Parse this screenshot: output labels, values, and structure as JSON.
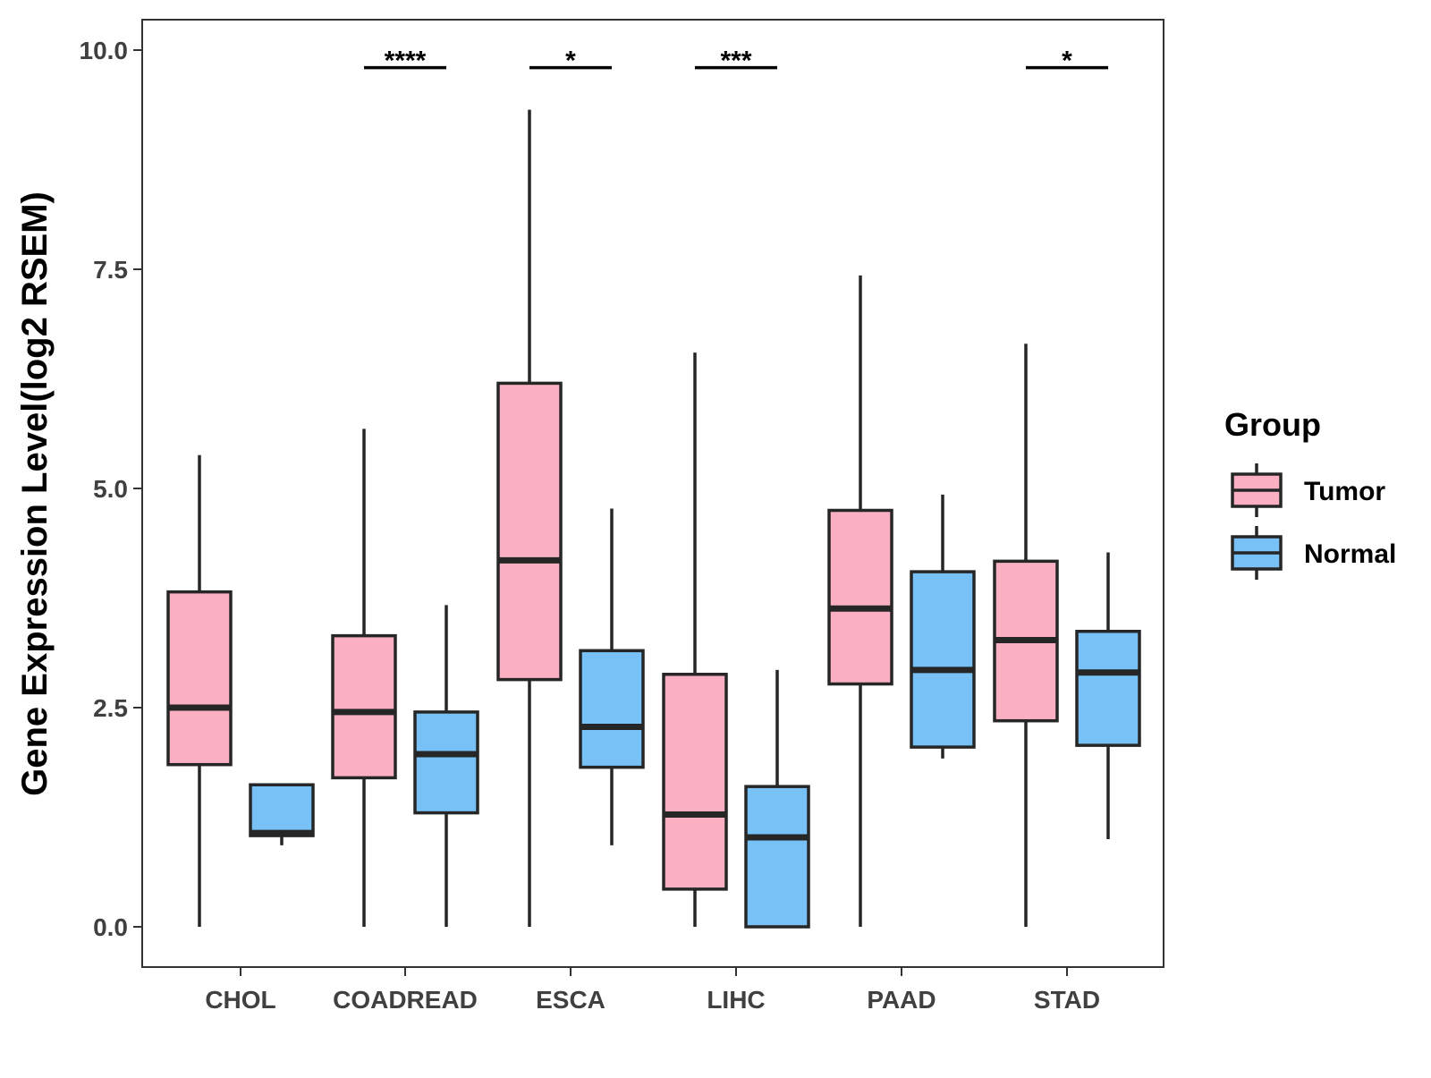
{
  "chart_data": {
    "type": "boxplot",
    "title": "",
    "xlabel": "",
    "ylabel": "Gene Expression Level(log2 RSEM)",
    "ylim": [
      -0.5,
      10.35
    ],
    "yticks": [
      0.0,
      2.5,
      5.0,
      7.5,
      10.0
    ],
    "ytick_labels": [
      "0.0",
      "2.5",
      "5.0",
      "7.5",
      "10.0"
    ],
    "grid": false,
    "categories": [
      "CHOL",
      "COADREAD",
      "ESCA",
      "LIHC",
      "PAAD",
      "STAD"
    ],
    "series": [
      {
        "name": "Tumor",
        "color": "#FAB0C2",
        "stats": [
          {
            "min": 0.0,
            "q1": 1.85,
            "median": 2.5,
            "q3": 3.82,
            "max": 5.38
          },
          {
            "min": 0.0,
            "q1": 1.7,
            "median": 2.45,
            "q3": 3.32,
            "max": 5.68
          },
          {
            "min": 0.0,
            "q1": 2.82,
            "median": 4.18,
            "q3": 6.2,
            "max": 9.32
          },
          {
            "min": 0.0,
            "q1": 0.43,
            "median": 1.28,
            "q3": 2.88,
            "max": 6.55
          },
          {
            "min": 0.0,
            "q1": 2.77,
            "median": 3.63,
            "q3": 4.75,
            "max": 7.43
          },
          {
            "min": 0.0,
            "q1": 2.35,
            "median": 3.27,
            "q3": 4.17,
            "max": 6.65
          }
        ]
      },
      {
        "name": "Normal",
        "color": "#77C1F7",
        "stats": [
          {
            "min": 0.93,
            "q1": 1.04,
            "median": 1.07,
            "q3": 1.62,
            "max": 1.62
          },
          {
            "min": 0.0,
            "q1": 1.3,
            "median": 1.97,
            "q3": 2.45,
            "max": 3.67
          },
          {
            "min": 0.93,
            "q1": 1.82,
            "median": 2.28,
            "q3": 3.15,
            "max": 4.77
          },
          {
            "min": 0.0,
            "q1": 0.0,
            "median": 1.02,
            "q3": 1.6,
            "max": 2.93
          },
          {
            "min": 1.92,
            "q1": 2.05,
            "median": 2.93,
            "q3": 4.05,
            "max": 4.93
          },
          {
            "min": 1.0,
            "q1": 2.07,
            "median": 2.9,
            "q3": 3.37,
            "max": 4.27
          }
        ]
      }
    ],
    "significance": [
      {
        "category": "CHOL",
        "label": ""
      },
      {
        "category": "COADREAD",
        "label": "****"
      },
      {
        "category": "ESCA",
        "label": "*"
      },
      {
        "category": "LIHC",
        "label": "***"
      },
      {
        "category": "PAAD",
        "label": ""
      },
      {
        "category": "STAD",
        "label": "*"
      }
    ],
    "significance_y": 9.8,
    "legend": {
      "title": "Group",
      "position": "right",
      "items": [
        {
          "label": "Tumor",
          "color": "#FAB0C2"
        },
        {
          "label": "Normal",
          "color": "#77C1F7"
        }
      ]
    }
  }
}
